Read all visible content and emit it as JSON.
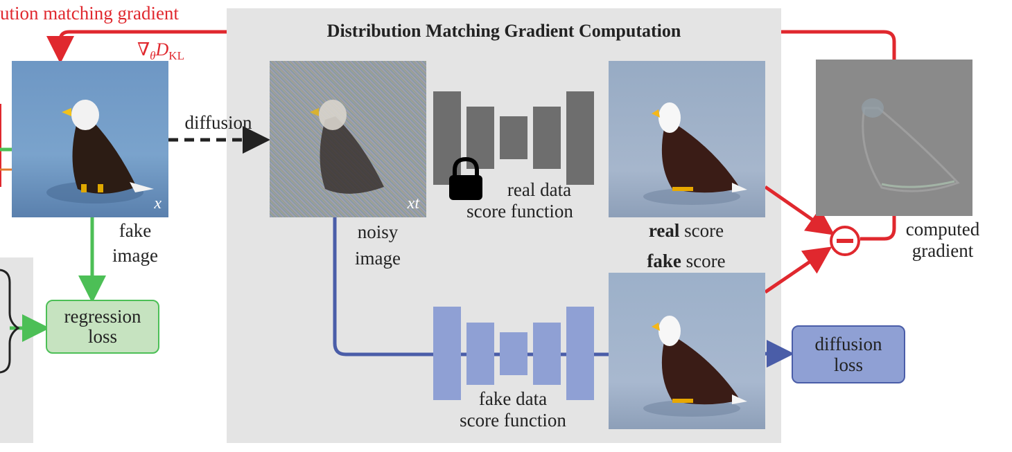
{
  "diagram": {
    "top_left_label": "ution matching gradient",
    "gradient_symbol": "∇θDKL",
    "panel_title": "Distribution Matching Gradient Computation",
    "fake_image_var": "x",
    "fake_image_label_1": "fake",
    "fake_image_label_2": "image",
    "diffusion_label": "diffusion",
    "noisy_image_var": "xt",
    "noisy_image_label_1": "noisy",
    "noisy_image_label_2": "image",
    "real_score_fn_1": "real data",
    "real_score_fn_2": "score function",
    "real_score_bold": "real",
    "real_score_rest": " score",
    "fake_score_bold": "fake",
    "fake_score_rest": " score",
    "fake_score_fn_1": "fake data",
    "fake_score_fn_2": "score function",
    "computed_gradient_1": "computed",
    "computed_gradient_2": "gradient",
    "regression_loss_1": "regression",
    "regression_loss_2": "loss",
    "diffusion_loss_1": "diffusion",
    "diffusion_loss_2": "loss"
  },
  "colors": {
    "red": "#e0282e",
    "green": "#4cbf56",
    "blue": "#4a5da8",
    "unet_gray": "#6e6e6e",
    "unet_blue": "#8fa0d4",
    "panel_gray": "#e4e4e4"
  }
}
